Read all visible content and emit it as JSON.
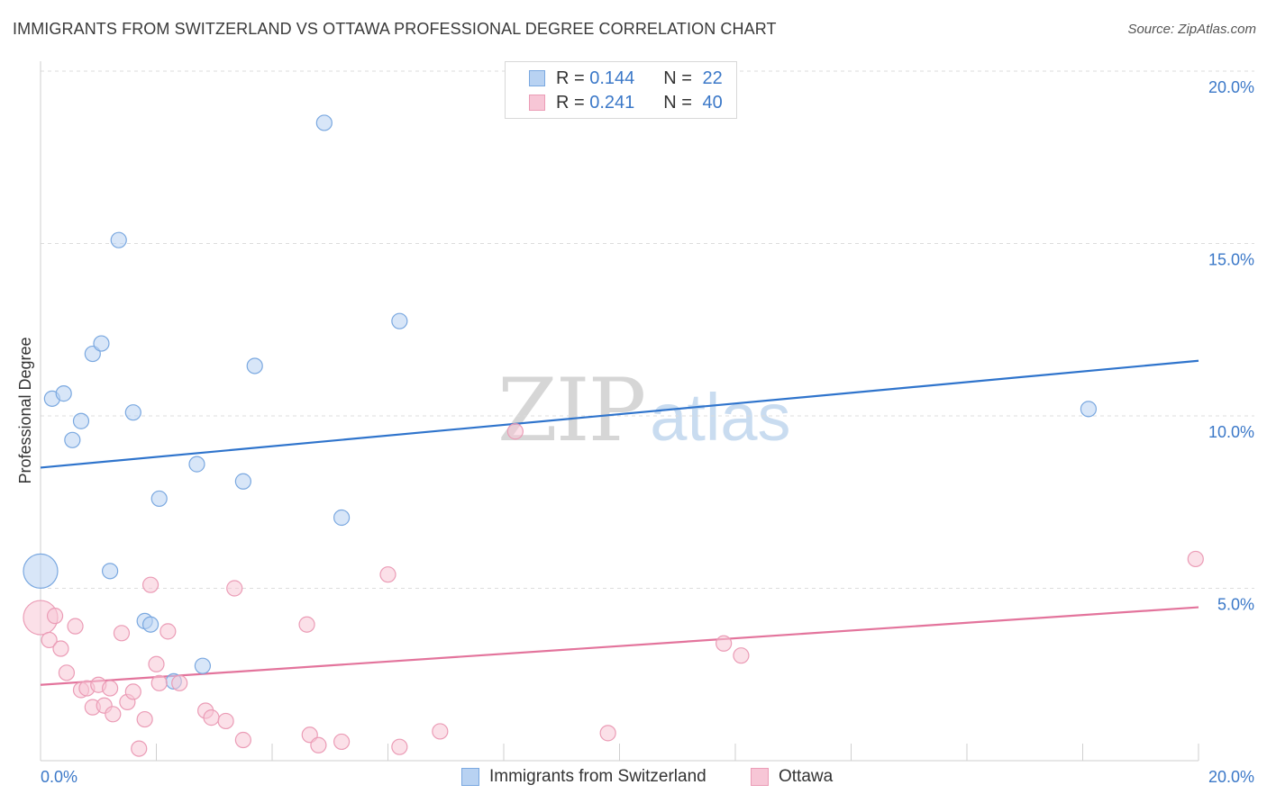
{
  "title": "IMMIGRANTS FROM SWITZERLAND VS OTTAWA PROFESSIONAL DEGREE CORRELATION CHART",
  "source": "Source: ZipAtlas.com",
  "watermark": {
    "zip": "ZIP",
    "atlas": "atlas"
  },
  "legend": [
    {
      "r_label": "R =",
      "r_value": "0.144",
      "n_label": "N =",
      "n_value": "22"
    },
    {
      "r_label": "R =",
      "r_value": "0.241",
      "n_label": "N =",
      "n_value": "40"
    }
  ],
  "chart_data": {
    "type": "scatter",
    "title": "IMMIGRANTS FROM SWITZERLAND VS OTTAWA PROFESSIONAL DEGREE CORRELATION CHART",
    "xlabel": "",
    "ylabel": "Professional Degree",
    "xlim": [
      0,
      20
    ],
    "ylim": [
      0,
      20
    ],
    "x_ticks": [
      "0.0%",
      "20.0%"
    ],
    "y_ticks": [
      {
        "value": 5,
        "label": "5.0%"
      },
      {
        "value": 10,
        "label": "10.0%"
      },
      {
        "value": 15,
        "label": "15.0%"
      },
      {
        "value": 20,
        "label": "20.0%"
      }
    ],
    "legend_position": "top-center",
    "series": [
      {
        "name": "Immigrants from Switzerland",
        "color": "#7aa8e0",
        "fill": "#b8d2f2",
        "line_color": "#2f74cc",
        "R": 0.144,
        "N": 22,
        "trend": {
          "x0": 0,
          "y0": 8.5,
          "x1": 20,
          "y1": 11.6
        },
        "points": [
          {
            "x": 0.0,
            "y": 5.5,
            "big": true
          },
          {
            "x": 0.2,
            "y": 10.5
          },
          {
            "x": 0.4,
            "y": 10.65
          },
          {
            "x": 0.55,
            "y": 9.3
          },
          {
            "x": 0.7,
            "y": 9.85
          },
          {
            "x": 0.9,
            "y": 11.8
          },
          {
            "x": 1.05,
            "y": 12.1
          },
          {
            "x": 1.2,
            "y": 5.5
          },
          {
            "x": 1.35,
            "y": 15.1
          },
          {
            "x": 1.6,
            "y": 10.1
          },
          {
            "x": 1.8,
            "y": 4.05
          },
          {
            "x": 1.9,
            "y": 3.95
          },
          {
            "x": 2.05,
            "y": 7.6
          },
          {
            "x": 2.3,
            "y": 2.3
          },
          {
            "x": 2.7,
            "y": 8.6
          },
          {
            "x": 2.8,
            "y": 2.75
          },
          {
            "x": 3.5,
            "y": 8.1
          },
          {
            "x": 3.7,
            "y": 11.45
          },
          {
            "x": 4.9,
            "y": 18.5
          },
          {
            "x": 5.2,
            "y": 7.05
          },
          {
            "x": 6.2,
            "y": 12.75
          },
          {
            "x": 18.1,
            "y": 10.2
          }
        ]
      },
      {
        "name": "Ottawa",
        "color": "#eb9cb6",
        "fill": "#f7c6d6",
        "line_color": "#e3749c",
        "R": 0.241,
        "N": 40,
        "trend": {
          "x0": 0,
          "y0": 2.2,
          "x1": 20,
          "y1": 4.45
        },
        "points": [
          {
            "x": 0.0,
            "y": 4.15,
            "big": true
          },
          {
            "x": 0.15,
            "y": 3.5
          },
          {
            "x": 0.25,
            "y": 4.2
          },
          {
            "x": 0.35,
            "y": 3.25
          },
          {
            "x": 0.45,
            "y": 2.55
          },
          {
            "x": 0.6,
            "y": 3.9
          },
          {
            "x": 0.7,
            "y": 2.05
          },
          {
            "x": 0.8,
            "y": 2.1
          },
          {
            "x": 0.9,
            "y": 1.55
          },
          {
            "x": 1.0,
            "y": 2.2
          },
          {
            "x": 1.1,
            "y": 1.6
          },
          {
            "x": 1.2,
            "y": 2.1
          },
          {
            "x": 1.25,
            "y": 1.35
          },
          {
            "x": 1.4,
            "y": 3.7
          },
          {
            "x": 1.5,
            "y": 1.7
          },
          {
            "x": 1.6,
            "y": 2.0
          },
          {
            "x": 1.7,
            "y": 0.35
          },
          {
            "x": 1.8,
            "y": 1.2
          },
          {
            "x": 1.9,
            "y": 5.1
          },
          {
            "x": 2.0,
            "y": 2.8
          },
          {
            "x": 2.05,
            "y": 2.25
          },
          {
            "x": 2.2,
            "y": 3.75
          },
          {
            "x": 2.4,
            "y": 2.25
          },
          {
            "x": 2.85,
            "y": 1.45
          },
          {
            "x": 2.95,
            "y": 1.25
          },
          {
            "x": 3.2,
            "y": 1.15
          },
          {
            "x": 3.35,
            "y": 5.0
          },
          {
            "x": 3.5,
            "y": 0.6
          },
          {
            "x": 4.6,
            "y": 3.95
          },
          {
            "x": 4.65,
            "y": 0.75
          },
          {
            "x": 4.8,
            "y": 0.45
          },
          {
            "x": 5.2,
            "y": 0.55
          },
          {
            "x": 6.0,
            "y": 5.4
          },
          {
            "x": 6.2,
            "y": 0.4
          },
          {
            "x": 6.9,
            "y": 0.85
          },
          {
            "x": 8.2,
            "y": 9.55
          },
          {
            "x": 9.8,
            "y": 0.8
          },
          {
            "x": 11.8,
            "y": 3.4
          },
          {
            "x": 12.1,
            "y": 3.05
          },
          {
            "x": 19.95,
            "y": 5.85
          }
        ]
      }
    ]
  },
  "bottom_legend": [
    {
      "label": "Immigrants from Switzerland"
    },
    {
      "label": "Ottawa"
    }
  ]
}
